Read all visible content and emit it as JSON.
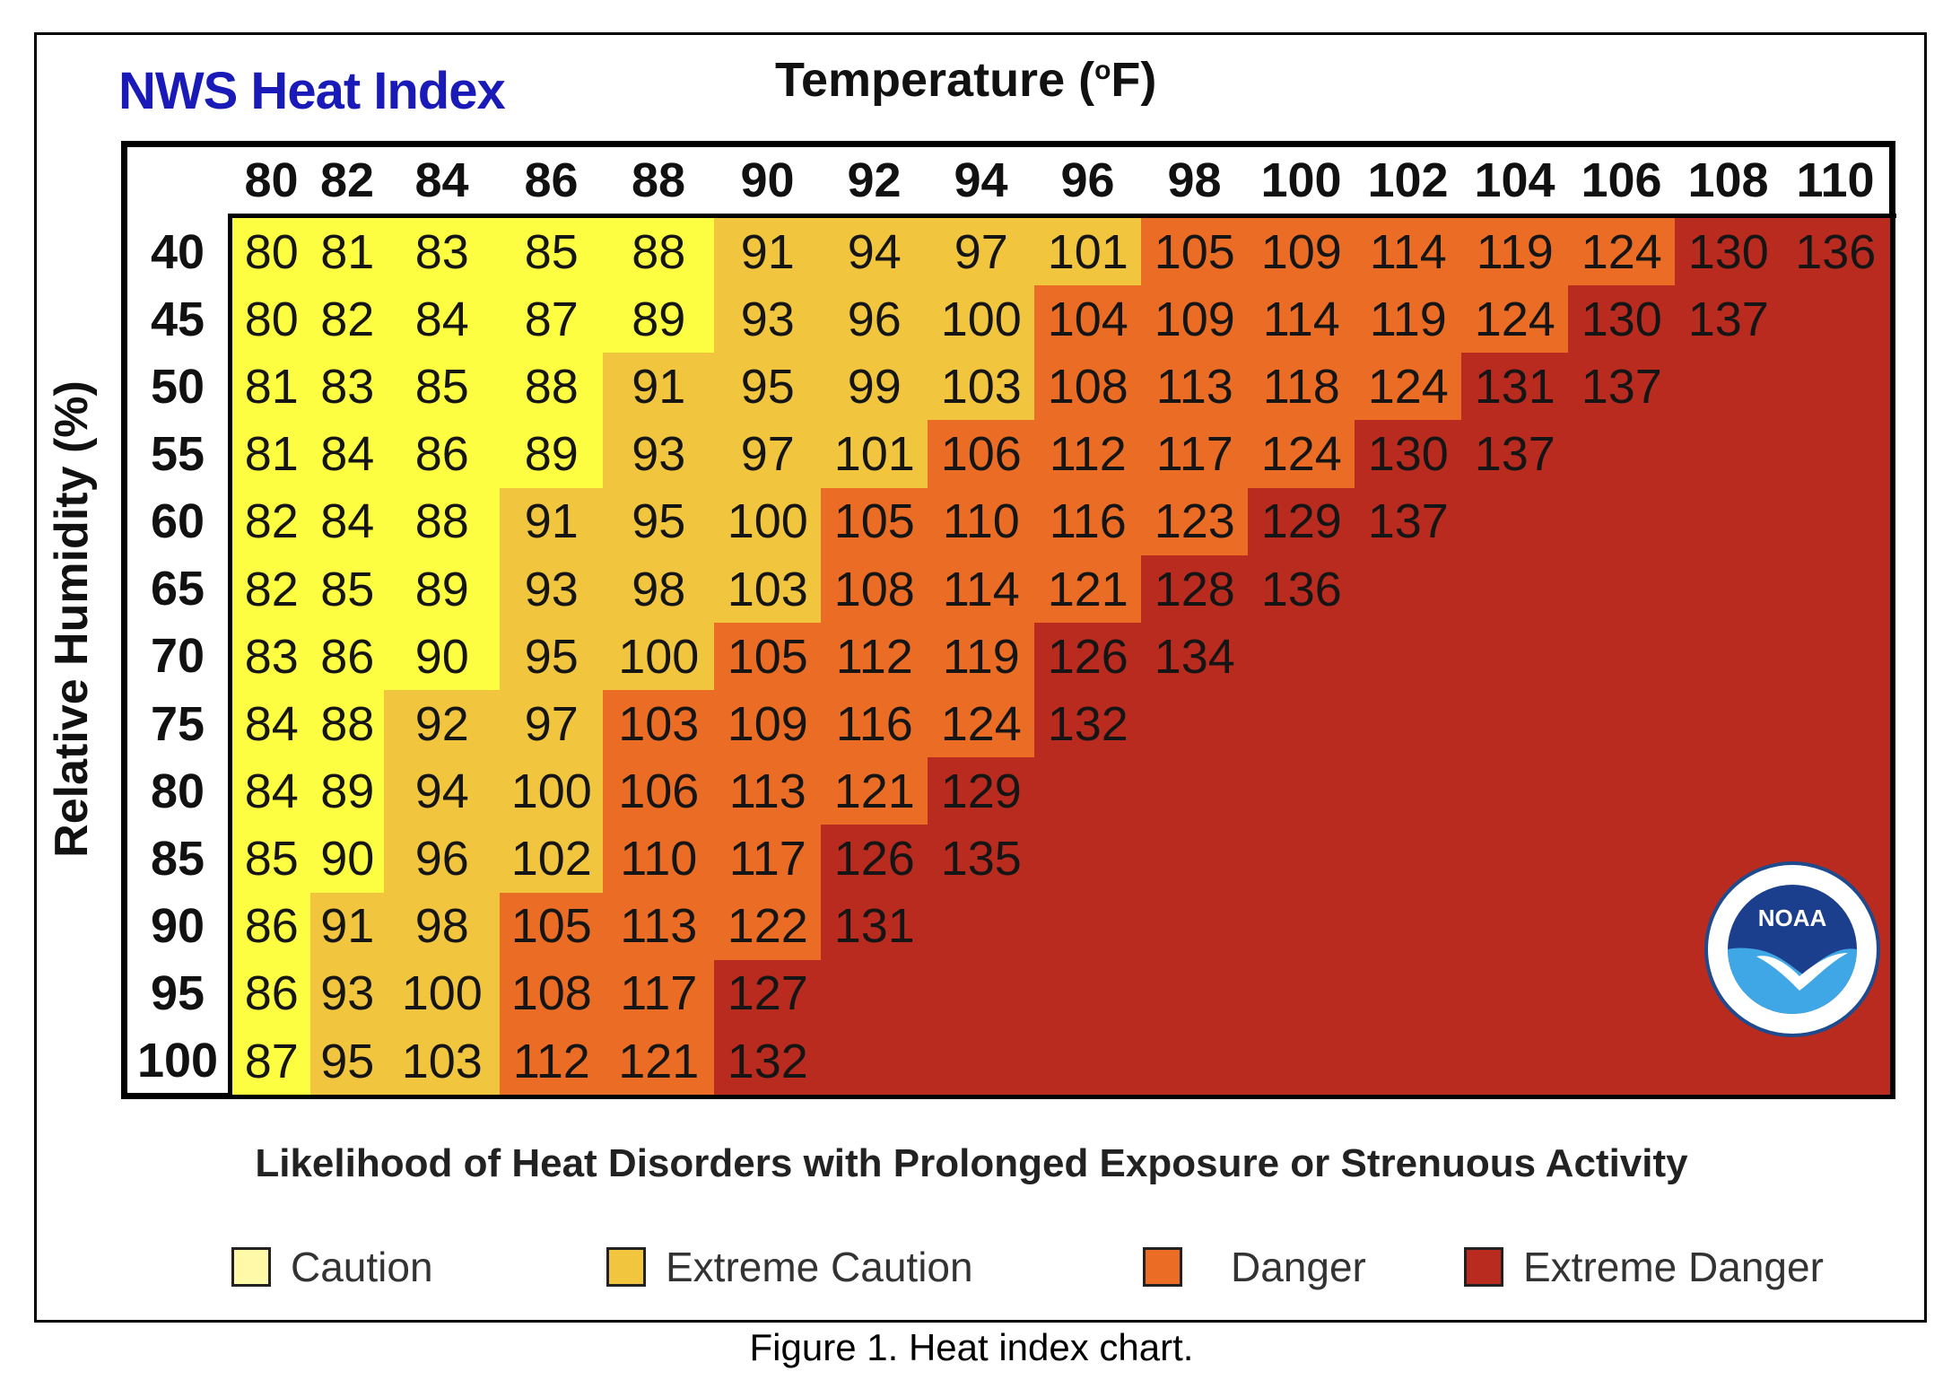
{
  "title": "NWS Heat Index",
  "x_axis_title": "Temperature (",
  "x_axis_title_sup": "o",
  "x_axis_title_end": "F)",
  "y_axis_title": "Relative Humidity (%)",
  "subtitle": "Likelihood of Heat Disorders with Prolonged Exposure or Strenuous Activity",
  "caption": "Figure 1. Heat index chart.",
  "logo_text": "NOAA",
  "colors": {
    "caution": "#fdfd42",
    "extreme_caution": "#f2c53e",
    "danger": "#eb6d25",
    "extreme_danger": "#b92b1f"
  },
  "legend": [
    {
      "label": "Caution",
      "category": "caution",
      "fill": "#fff9a8"
    },
    {
      "label": "Extreme Caution",
      "category": "extreme_caution",
      "fill": "#f2c53e"
    },
    {
      "label": "Danger",
      "category": "danger",
      "fill": "#eb6d25"
    },
    {
      "label": "Extreme Danger",
      "category": "extreme_danger",
      "fill": "#b92b1f"
    }
  ],
  "chart_data": {
    "type": "heatmap",
    "title": "NWS Heat Index",
    "xlabel": "Temperature (oF)",
    "ylabel": "Relative Humidity (%)",
    "x": [
      80,
      82,
      84,
      86,
      88,
      90,
      92,
      94,
      96,
      98,
      100,
      102,
      104,
      106,
      108,
      110
    ],
    "y": [
      40,
      45,
      50,
      55,
      60,
      65,
      70,
      75,
      80,
      85,
      90,
      95,
      100
    ],
    "values": [
      [
        80,
        81,
        83,
        85,
        88,
        91,
        94,
        97,
        101,
        105,
        109,
        114,
        119,
        124,
        130,
        136
      ],
      [
        80,
        82,
        84,
        87,
        89,
        93,
        96,
        100,
        104,
        109,
        114,
        119,
        124,
        130,
        137,
        null
      ],
      [
        81,
        83,
        85,
        88,
        91,
        95,
        99,
        103,
        108,
        113,
        118,
        124,
        131,
        137,
        null,
        null
      ],
      [
        81,
        84,
        86,
        89,
        93,
        97,
        101,
        106,
        112,
        117,
        124,
        130,
        137,
        null,
        null,
        null
      ],
      [
        82,
        84,
        88,
        91,
        95,
        100,
        105,
        110,
        116,
        123,
        129,
        137,
        null,
        null,
        null,
        null
      ],
      [
        82,
        85,
        89,
        93,
        98,
        103,
        108,
        114,
        121,
        128,
        136,
        null,
        null,
        null,
        null,
        null
      ],
      [
        83,
        86,
        90,
        95,
        100,
        105,
        112,
        119,
        126,
        134,
        null,
        null,
        null,
        null,
        null,
        null
      ],
      [
        84,
        88,
        92,
        97,
        103,
        109,
        116,
        124,
        132,
        null,
        null,
        null,
        null,
        null,
        null,
        null
      ],
      [
        84,
        89,
        94,
        100,
        106,
        113,
        121,
        129,
        null,
        null,
        null,
        null,
        null,
        null,
        null,
        null
      ],
      [
        85,
        90,
        96,
        102,
        110,
        117,
        126,
        135,
        null,
        null,
        null,
        null,
        null,
        null,
        null,
        null
      ],
      [
        86,
        91,
        98,
        105,
        113,
        122,
        131,
        null,
        null,
        null,
        null,
        null,
        null,
        null,
        null,
        null
      ],
      [
        86,
        93,
        100,
        108,
        117,
        127,
        null,
        null,
        null,
        null,
        null,
        null,
        null,
        null,
        null,
        null
      ],
      [
        87,
        95,
        103,
        112,
        121,
        132,
        null,
        null,
        null,
        null,
        null,
        null,
        null,
        null,
        null,
        null
      ]
    ],
    "categories": [
      [
        "c",
        "c",
        "c",
        "c",
        "c",
        "e",
        "e",
        "e",
        "e",
        "d",
        "d",
        "d",
        "d",
        "d",
        "x",
        "x"
      ],
      [
        "c",
        "c",
        "c",
        "c",
        "c",
        "e",
        "e",
        "e",
        "d",
        "d",
        "d",
        "d",
        "d",
        "x",
        "x",
        "x"
      ],
      [
        "c",
        "c",
        "c",
        "c",
        "e",
        "e",
        "e",
        "e",
        "d",
        "d",
        "d",
        "d",
        "x",
        "x",
        "x",
        "x"
      ],
      [
        "c",
        "c",
        "c",
        "c",
        "e",
        "e",
        "e",
        "d",
        "d",
        "d",
        "d",
        "x",
        "x",
        "x",
        "x",
        "x"
      ],
      [
        "c",
        "c",
        "c",
        "e",
        "e",
        "e",
        "d",
        "d",
        "d",
        "d",
        "x",
        "x",
        "x",
        "x",
        "x",
        "x"
      ],
      [
        "c",
        "c",
        "c",
        "e",
        "e",
        "e",
        "d",
        "d",
        "d",
        "x",
        "x",
        "x",
        "x",
        "x",
        "x",
        "x"
      ],
      [
        "c",
        "c",
        "c",
        "e",
        "e",
        "d",
        "d",
        "d",
        "x",
        "x",
        "x",
        "x",
        "x",
        "x",
        "x",
        "x"
      ],
      [
        "c",
        "c",
        "e",
        "e",
        "d",
        "d",
        "d",
        "d",
        "x",
        "x",
        "x",
        "x",
        "x",
        "x",
        "x",
        "x"
      ],
      [
        "c",
        "c",
        "e",
        "e",
        "d",
        "d",
        "d",
        "x",
        "x",
        "x",
        "x",
        "x",
        "x",
        "x",
        "x",
        "x"
      ],
      [
        "c",
        "c",
        "e",
        "e",
        "d",
        "d",
        "x",
        "x",
        "x",
        "x",
        "x",
        "x",
        "x",
        "x",
        "x",
        "x"
      ],
      [
        "c",
        "e",
        "e",
        "d",
        "d",
        "d",
        "x",
        "x",
        "x",
        "x",
        "x",
        "x",
        "x",
        "x",
        "x",
        "x"
      ],
      [
        "c",
        "e",
        "e",
        "d",
        "d",
        "x",
        "x",
        "x",
        "x",
        "x",
        "x",
        "x",
        "x",
        "x",
        "x",
        "x"
      ],
      [
        "c",
        "e",
        "e",
        "d",
        "d",
        "x",
        "x",
        "x",
        "x",
        "x",
        "x",
        "x",
        "x",
        "x",
        "x",
        "x"
      ]
    ],
    "category_legend": {
      "c": "Caution",
      "e": "Extreme Caution",
      "d": "Danger",
      "x": "Extreme Danger"
    }
  }
}
